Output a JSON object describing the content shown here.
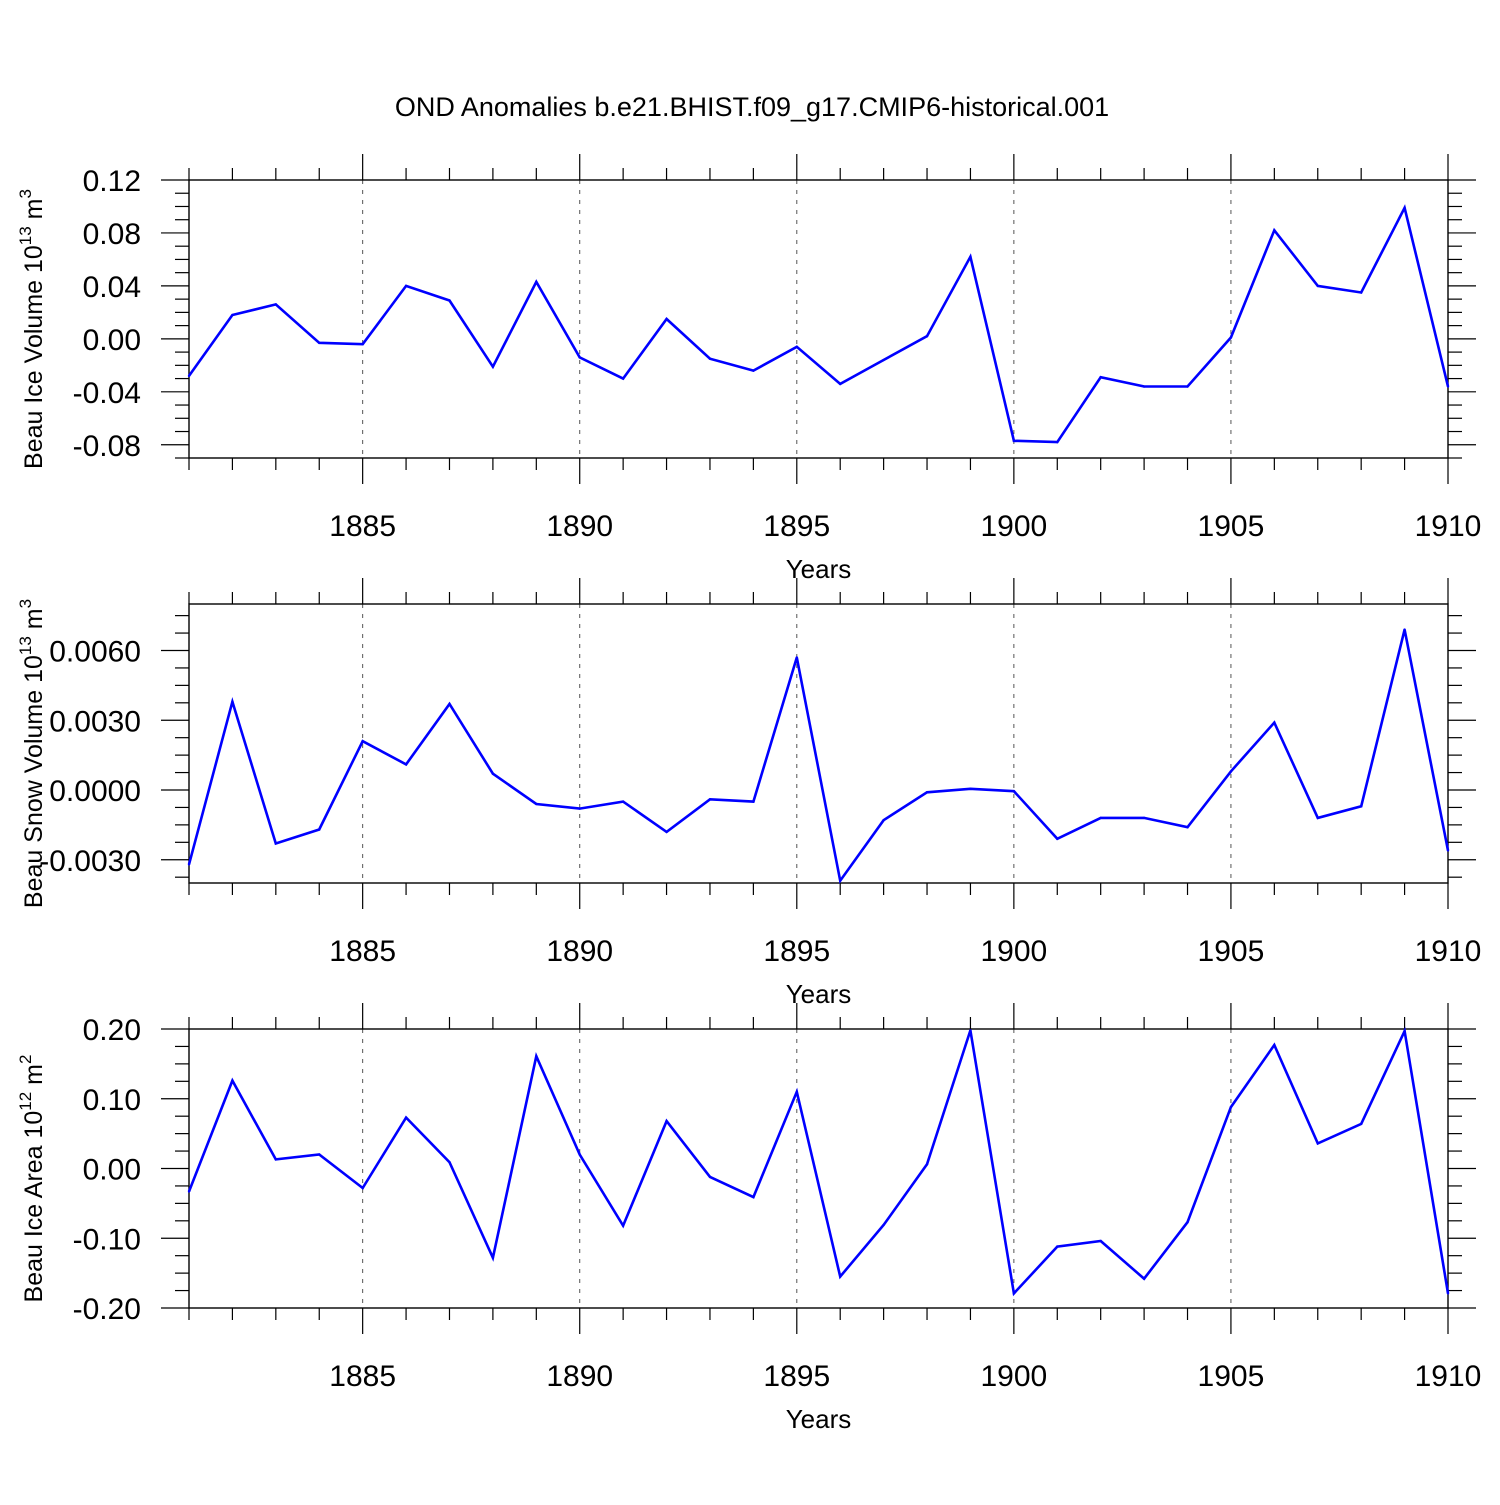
{
  "title": "OND Anomalies b.e21.BHIST.f09_g17.CMIP6-historical.001",
  "line_color": "#0000ff",
  "chart_data": [
    {
      "type": "line",
      "title": "OND Anomalies b.e21.BHIST.f09_g17.CMIP6-historical.001",
      "xlabel": "Years",
      "ylabel_main": "Beau Ice Volume 10",
      "ylabel_exp": "13",
      "ylabel_unit": " m",
      "ylabel_unit_exp": "3",
      "xlim": [
        1881,
        1910
      ],
      "ylim": [
        -0.09,
        0.12
      ],
      "yticks": [
        0.12,
        0.08,
        0.04,
        0.0,
        -0.04,
        -0.08
      ],
      "ytick_labels": [
        "0.12",
        "0.08",
        "0.04",
        "0.00",
        "-0.04",
        "-0.08"
      ],
      "xticks": [
        1885,
        1890,
        1895,
        1900,
        1905,
        1910
      ],
      "xtick_labels": [
        "1885",
        "1890",
        "1895",
        "1900",
        "1905",
        "1910"
      ],
      "series": [
        {
          "name": "Beau Ice Volume",
          "x": [
            1881,
            1882,
            1883,
            1884,
            1885,
            1886,
            1887,
            1888,
            1889,
            1890,
            1891,
            1892,
            1893,
            1894,
            1895,
            1896,
            1897,
            1898,
            1899,
            1900,
            1901,
            1902,
            1903,
            1904,
            1905,
            1906,
            1907,
            1908,
            1909,
            1910
          ],
          "values": [
            -0.028,
            0.018,
            0.026,
            -0.003,
            -0.004,
            0.04,
            0.029,
            -0.021,
            0.043,
            -0.014,
            -0.03,
            0.015,
            -0.015,
            -0.024,
            -0.006,
            -0.034,
            -0.016,
            0.002,
            0.062,
            -0.077,
            -0.078,
            -0.029,
            -0.036,
            -0.036,
            0.001,
            0.082,
            0.04,
            0.035,
            0.099,
            -0.036
          ]
        }
      ]
    },
    {
      "type": "line",
      "xlabel": "Years",
      "ylabel_main": "Beau Snow Volume 10",
      "ylabel_exp": "13",
      "ylabel_unit": " m",
      "ylabel_unit_exp": "3",
      "xlim": [
        1881,
        1910
      ],
      "ylim": [
        -0.004,
        0.008
      ],
      "yticks": [
        0.006,
        0.003,
        0.0,
        -0.003
      ],
      "ytick_labels": [
        "0.0060",
        "0.0030",
        "0.0000",
        "-0.0030"
      ],
      "xticks": [
        1885,
        1890,
        1895,
        1900,
        1905,
        1910
      ],
      "xtick_labels": [
        "1885",
        "1890",
        "1895",
        "1900",
        "1905",
        "1910"
      ],
      "series": [
        {
          "name": "Beau Snow Volume",
          "x": [
            1881,
            1882,
            1883,
            1884,
            1885,
            1886,
            1887,
            1888,
            1889,
            1890,
            1891,
            1892,
            1893,
            1894,
            1895,
            1896,
            1897,
            1898,
            1899,
            1900,
            1901,
            1902,
            1903,
            1904,
            1905,
            1906,
            1907,
            1908,
            1909,
            1910
          ],
          "values": [
            -0.0032,
            0.0038,
            -0.0023,
            -0.0017,
            0.0021,
            0.0011,
            0.0037,
            0.0007,
            -0.0006,
            -0.0008,
            -0.0005,
            -0.0018,
            -0.0004,
            -0.0005,
            0.0057,
            -0.0039,
            -0.0013,
            -0.0001,
            5e-05,
            -5e-05,
            -0.0021,
            -0.0012,
            -0.0012,
            -0.0016,
            0.0008,
            0.0029,
            -0.0012,
            -0.0007,
            0.0069,
            -0.0026
          ]
        }
      ]
    },
    {
      "type": "line",
      "xlabel": "Years",
      "ylabel_main": "Beau Ice Area 10",
      "ylabel_exp": "12",
      "ylabel_unit": " m",
      "ylabel_unit_exp": "2",
      "xlim": [
        1881,
        1910
      ],
      "ylim": [
        -0.2,
        0.2
      ],
      "yticks": [
        0.2,
        0.1,
        0.0,
        -0.1,
        -0.2
      ],
      "ytick_labels": [
        "0.20",
        "0.10",
        "0.00",
        "-0.10",
        "-0.20"
      ],
      "xticks": [
        1885,
        1890,
        1895,
        1900,
        1905,
        1910
      ],
      "xtick_labels": [
        "1885",
        "1890",
        "1895",
        "1900",
        "1905",
        "1910"
      ],
      "series": [
        {
          "name": "Beau Ice Area",
          "x": [
            1881,
            1882,
            1883,
            1884,
            1885,
            1886,
            1887,
            1888,
            1889,
            1890,
            1891,
            1892,
            1893,
            1894,
            1895,
            1896,
            1897,
            1898,
            1899,
            1900,
            1901,
            1902,
            1903,
            1904,
            1905,
            1906,
            1907,
            1908,
            1909,
            1910
          ],
          "values": [
            -0.033,
            0.126,
            0.013,
            0.02,
            -0.028,
            0.073,
            0.009,
            -0.128,
            0.161,
            0.02,
            -0.082,
            0.068,
            -0.012,
            -0.041,
            0.11,
            -0.155,
            -0.081,
            0.006,
            0.198,
            -0.179,
            -0.112,
            -0.104,
            -0.158,
            -0.077,
            0.088,
            0.177,
            0.036,
            0.064,
            0.197,
            -0.179
          ]
        }
      ]
    }
  ]
}
